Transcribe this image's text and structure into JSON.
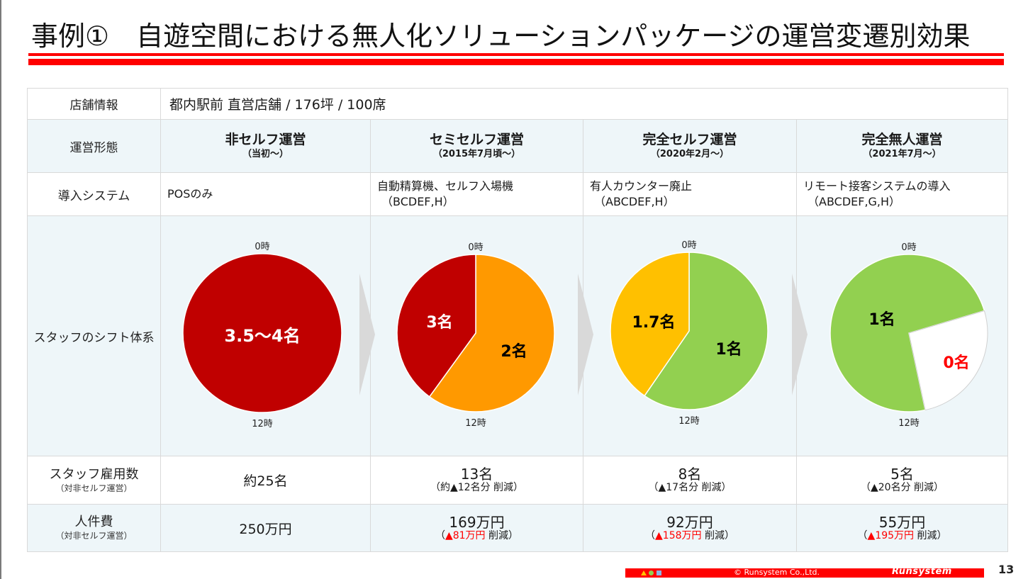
{
  "title": "事例①　自遊空間における無人化ソリューションパッケージの運営変遷別効果",
  "table": {
    "store_info": {
      "label": "店舗情報",
      "value": "都内駅前 直営店舗 / 176坪 / 100席"
    },
    "operation_mode": {
      "label": "運営形態",
      "columns": [
        {
          "name": "非セルフ運営",
          "period": "（当初～）"
        },
        {
          "name": "セミセルフ運営",
          "period": "（2015年7月頃～）"
        },
        {
          "name": "完全セルフ運営",
          "period": "（2020年2月～）"
        },
        {
          "name": "完全無人運営",
          "period": "（2021年7月～）"
        }
      ]
    },
    "systems": {
      "label": "導入システム",
      "columns": [
        {
          "text": "POSのみ",
          "code": ""
        },
        {
          "text": "自動精算機、セルフ入場機",
          "code": "（BCDEF,H）"
        },
        {
          "text": "有人カウンター廃止",
          "code": "（ABCDEF,H）"
        },
        {
          "text": "リモート接客システムの導入",
          "code": "（ABCDEF,G,H）"
        }
      ]
    },
    "shift": {
      "label": "スタッフのシフト体系"
    },
    "staff_count": {
      "label": "スタッフ雇用数",
      "sublabel": "（対非セルフ運営）",
      "columns": [
        {
          "value": "約25名",
          "note": ""
        },
        {
          "value": "13名",
          "note": "（約▲12名分 削減）"
        },
        {
          "value": "8名",
          "note": "（▲17名分 削減）"
        },
        {
          "value": "5名",
          "note": "（▲20名分 削減）"
        }
      ]
    },
    "labor_cost": {
      "label": "人件費",
      "sublabel": "（対非セルフ運営）",
      "columns": [
        {
          "value": "250万円",
          "open": "",
          "reduction": "",
          "close": ""
        },
        {
          "value": "169万円",
          "open": "（",
          "reduction": "▲81万円",
          "close": " 削減）"
        },
        {
          "value": "92万円",
          "open": "（",
          "reduction": "▲158万円",
          "close": " 削減）"
        },
        {
          "value": "55万円",
          "open": "（",
          "reduction": "▲195万円",
          "close": " 削減）"
        }
      ]
    }
  },
  "chart_data": [
    {
      "type": "pie",
      "title": "非セルフ運営 スタッフのシフト体系",
      "clock_labels": {
        "top": "0時",
        "bottom": "12時"
      },
      "clock_range_hours": [
        0,
        24
      ],
      "slices": [
        {
          "label": "3.5～4名",
          "from_hour": 0,
          "to_hour": 24,
          "color": "#c00000",
          "label_color": "#ffffff"
        }
      ]
    },
    {
      "type": "pie",
      "title": "セミセルフ運営 スタッフのシフト体系",
      "clock_labels": {
        "top": "0時",
        "bottom": "12時"
      },
      "clock_range_hours": [
        0,
        24
      ],
      "slices": [
        {
          "label": "2名",
          "from_hour": 0,
          "to_hour": 14.4,
          "color": "#ff9900",
          "label_color": "#000000"
        },
        {
          "label": "3名",
          "from_hour": 14.4,
          "to_hour": 24,
          "color": "#c00000",
          "label_color": "#ffffff"
        }
      ]
    },
    {
      "type": "pie",
      "title": "完全セルフ運営 スタッフのシフト体系",
      "clock_labels": {
        "top": "0時",
        "bottom": "12時"
      },
      "clock_range_hours": [
        0,
        24
      ],
      "slices": [
        {
          "label": "1名",
          "from_hour": 0,
          "to_hour": 14.3,
          "color": "#92d050",
          "label_color": "#000000"
        },
        {
          "label": "1.7名",
          "from_hour": 14.3,
          "to_hour": 24,
          "color": "#ffc000",
          "label_color": "#000000"
        }
      ]
    },
    {
      "type": "pie",
      "title": "完全無人運営 スタッフのシフト体系",
      "clock_labels": {
        "top": "0時",
        "bottom": "12時"
      },
      "clock_range_hours": [
        0,
        24
      ],
      "slices": [
        {
          "label": "1名",
          "from_hour": 11.2,
          "to_hour": 28.9,
          "color": "#92d050",
          "label_color": "#000000"
        },
        {
          "label": "0名",
          "from_hour": 4.9,
          "to_hour": 11.2,
          "color": "#ffffff",
          "label_color": "#ff0000"
        }
      ]
    }
  ],
  "footer": {
    "copyright": "© Runsystem Co.,Ltd.",
    "logo_text": "Runsystem",
    "page_number": "13"
  },
  "colors": {
    "accent_red": "#ff0000",
    "table_tint": "#eef6f9"
  }
}
